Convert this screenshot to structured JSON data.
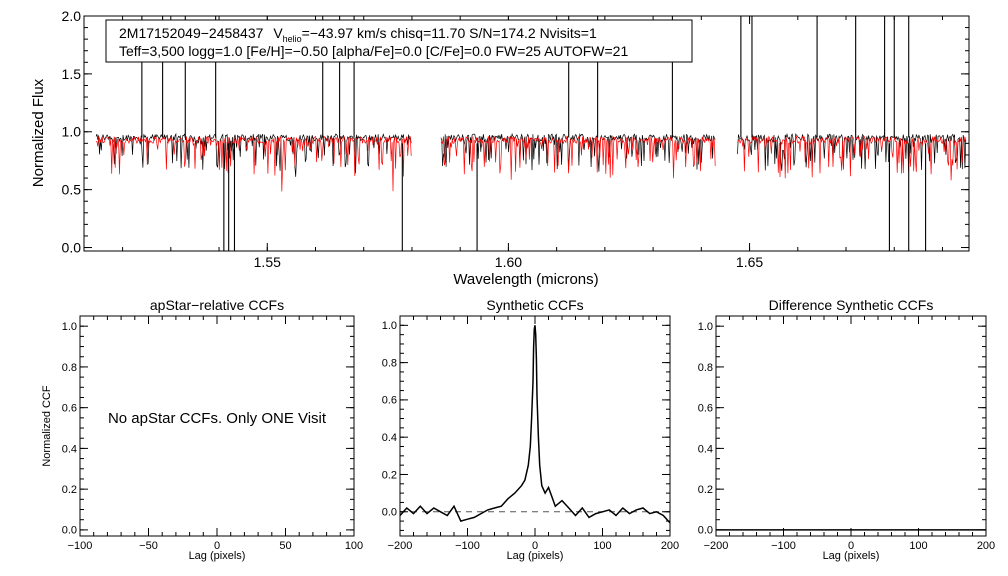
{
  "chart_data": [
    {
      "type": "line",
      "id": "spectrum",
      "title": "",
      "info_box": {
        "line1": {
          "star_id": "2M17152049−2458437",
          "v_label": "V",
          "v_sub": "helio",
          "v_value": "=−43.97 km/s  chisq=11.70  S/N=174.2  Nvisits=1"
        },
        "line2": "Teff=3,500 logg=1.0 [Fe/H]=−0.50 [alpha/Fe]=0.0 [C/Fe]=0.0 FW=25 AUTOFW=21"
      },
      "xlabel": "Wavelength (microns)",
      "ylabel": "Normalized Flux",
      "xlim": [
        1.512,
        1.6955
      ],
      "ylim": [
        -0.03,
        2.0
      ],
      "xticks": [
        {
          "v": 1.55,
          "label": "1.55"
        },
        {
          "v": 1.6,
          "label": "1.60"
        },
        {
          "v": 1.65,
          "label": "1.65"
        }
      ],
      "yticks": [
        {
          "v": 0.0,
          "label": "0.0"
        },
        {
          "v": 0.5,
          "label": "0.5"
        },
        {
          "v": 1.0,
          "label": "1.0"
        },
        {
          "v": 1.5,
          "label": "1.5"
        },
        {
          "v": 2.0,
          "label": "2.0"
        }
      ],
      "x_minor_step": 0.01,
      "y_minor_step": 0.1,
      "chips": [
        [
          1.5145,
          1.58
        ],
        [
          1.586,
          1.643
        ],
        [
          1.6475,
          1.695
        ]
      ],
      "series": [
        {
          "name": "observed spectrum",
          "color": "#000000",
          "level": 0.95
        },
        {
          "name": "synthetic model",
          "color": "#ff0000",
          "level": 0.93
        }
      ],
      "emission_spikes": [
        1.524,
        1.5283,
        1.533,
        1.5393,
        1.5615,
        1.565,
        1.568,
        1.6125,
        1.6185,
        1.634,
        1.6482,
        1.6505,
        1.664,
        1.672,
        1.678,
        1.68,
        1.683
      ],
      "absorption_spikes": [
        1.541,
        1.542,
        1.5432,
        1.578,
        1.5935,
        1.679,
        1.683,
        1.6865
      ]
    },
    {
      "type": "line",
      "id": "apstar",
      "title": "apStar−relative CCFs",
      "xlabel": "Lag (pixels)",
      "ylabel": "Normalized CCF",
      "xlim": [
        -100,
        100
      ],
      "ylim": [
        -0.03,
        1.05
      ],
      "xticks": [
        {
          "v": -100,
          "label": "−100"
        },
        {
          "v": -50,
          "label": "−50"
        },
        {
          "v": 0,
          "label": "0"
        },
        {
          "v": 50,
          "label": "50"
        },
        {
          "v": 100,
          "label": "100"
        }
      ],
      "yticks": [
        {
          "v": 0.0,
          "label": "0.0"
        },
        {
          "v": 0.2,
          "label": "0.2"
        },
        {
          "v": 0.4,
          "label": "0.4"
        },
        {
          "v": 0.6,
          "label": "0.6"
        },
        {
          "v": 0.8,
          "label": "0.8"
        },
        {
          "v": 1.0,
          "label": "1.0"
        }
      ],
      "x_minor_step": 10,
      "y_minor_step": 0.05,
      "annotation": "No apStar CCFs.  Only ONE Visit",
      "series": []
    },
    {
      "type": "line",
      "id": "synthetic",
      "title": "Synthetic CCFs",
      "xlabel": "Lag (pixels)",
      "ylabel": "",
      "xlim": [
        -200,
        200
      ],
      "ylim": [
        -0.13,
        1.05
      ],
      "xticks": [
        {
          "v": -200,
          "label": "−200"
        },
        {
          "v": -100,
          "label": "−100"
        },
        {
          "v": 0,
          "label": "0"
        },
        {
          "v": 100,
          "label": "100"
        },
        {
          "v": 200,
          "label": "200"
        }
      ],
      "yticks": [
        {
          "v": 0.0,
          "label": "0.0"
        },
        {
          "v": 0.2,
          "label": "0.2"
        },
        {
          "v": 0.4,
          "label": "0.4"
        },
        {
          "v": 0.6,
          "label": "0.6"
        },
        {
          "v": 0.8,
          "label": "0.8"
        },
        {
          "v": 1.0,
          "label": "1.0"
        }
      ],
      "x_minor_step": 20,
      "y_minor_step": 0.05,
      "baseline": 0.0,
      "series": [
        {
          "name": "synthetic CCF",
          "color": "#000000",
          "x": [
            -200,
            -190,
            -180,
            -170,
            -160,
            -150,
            -140,
            -130,
            -120,
            -110,
            -100,
            -90,
            -80,
            -70,
            -60,
            -50,
            -40,
            -30,
            -20,
            -15,
            -10,
            -7,
            -5,
            -3,
            -2,
            -1,
            0,
            1,
            2,
            3,
            5,
            7,
            10,
            15,
            20,
            25,
            30,
            40,
            50,
            60,
            70,
            80,
            90,
            100,
            110,
            120,
            130,
            140,
            150,
            160,
            170,
            180,
            190,
            200
          ],
          "y": [
            -0.02,
            0.02,
            -0.01,
            0.03,
            -0.01,
            0.02,
            0.0,
            -0.02,
            0.03,
            -0.05,
            -0.04,
            -0.03,
            -0.01,
            0.01,
            0.02,
            0.03,
            0.07,
            0.1,
            0.14,
            0.17,
            0.25,
            0.35,
            0.5,
            0.7,
            0.88,
            0.98,
            1.0,
            0.95,
            0.82,
            0.62,
            0.4,
            0.25,
            0.14,
            0.1,
            0.13,
            0.08,
            0.03,
            0.06,
            0.02,
            -0.02,
            0.02,
            -0.03,
            -0.01,
            0.0,
            0.01,
            -0.02,
            0.02,
            -0.01,
            0.01,
            0.02,
            -0.01,
            0.0,
            -0.02,
            -0.06
          ]
        }
      ]
    },
    {
      "type": "line",
      "id": "difference",
      "title": "Difference Synthetic CCFs",
      "xlabel": "Lag (pixels)",
      "ylabel": "",
      "xlim": [
        -200,
        200
      ],
      "ylim": [
        -0.03,
        1.05
      ],
      "xticks": [
        {
          "v": -200,
          "label": "−200"
        },
        {
          "v": -100,
          "label": "−100"
        },
        {
          "v": 0,
          "label": "0"
        },
        {
          "v": 100,
          "label": "100"
        },
        {
          "v": 200,
          "label": "200"
        }
      ],
      "yticks": [
        {
          "v": 0.0,
          "label": "0.0"
        },
        {
          "v": 0.2,
          "label": "0.2"
        },
        {
          "v": 0.4,
          "label": "0.4"
        },
        {
          "v": 0.6,
          "label": "0.6"
        },
        {
          "v": 0.8,
          "label": "0.8"
        },
        {
          "v": 1.0,
          "label": "1.0"
        }
      ],
      "x_minor_step": 20,
      "y_minor_step": 0.05,
      "series": [
        {
          "name": "difference CCF",
          "color": "#000000",
          "x": [
            -200,
            200
          ],
          "y": [
            0.0,
            0.0
          ]
        }
      ]
    }
  ]
}
